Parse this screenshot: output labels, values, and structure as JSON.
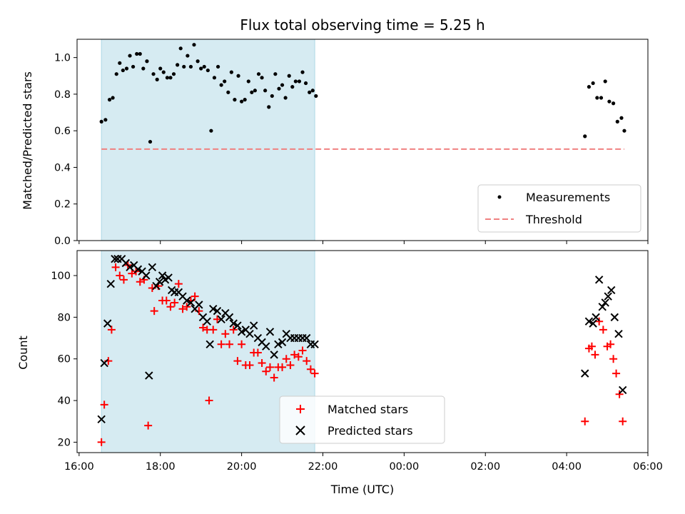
{
  "chart_data": [
    {
      "type": "scatter",
      "title": "Flux total observing time = 5.25 h",
      "xlabel": "",
      "ylabel": "Matched/Predicted stars",
      "ylim": [
        0,
        1.1
      ],
      "yticks": [
        "0.0",
        "0.2",
        "0.4",
        "0.6",
        "0.8",
        "1.0"
      ],
      "ytick_values": [
        0,
        0.2,
        0.4,
        0.6,
        0.8,
        1.0
      ],
      "highlight_span": {
        "x0": 16.55,
        "x1": 21.8,
        "color": "#add8e6"
      },
      "legend": {
        "position": "lower right"
      },
      "series": [
        {
          "name": "Measurements",
          "marker": "dot",
          "color": "#000000",
          "x": [
            16.55,
            16.65,
            16.75,
            16.83,
            16.92,
            17.0,
            17.08,
            17.17,
            17.25,
            17.33,
            17.42,
            17.5,
            17.58,
            17.67,
            17.75,
            17.83,
            17.92,
            18.0,
            18.08,
            18.17,
            18.25,
            18.33,
            18.42,
            18.5,
            18.58,
            18.67,
            18.75,
            18.83,
            18.92,
            19.0,
            19.08,
            19.17,
            19.25,
            19.33,
            19.42,
            19.5,
            19.58,
            19.67,
            19.75,
            19.83,
            19.92,
            20.0,
            20.08,
            20.17,
            20.25,
            20.33,
            20.42,
            20.5,
            20.58,
            20.67,
            20.75,
            20.83,
            20.92,
            21.0,
            21.08,
            21.17,
            21.25,
            21.33,
            21.42,
            21.5,
            21.58,
            21.67,
            21.75,
            21.83,
            4.45,
            4.55,
            4.65,
            4.75,
            4.85,
            4.95,
            5.05,
            5.15,
            5.25,
            5.35,
            5.42
          ],
          "y": [
            0.65,
            0.66,
            0.77,
            0.78,
            0.91,
            0.97,
            0.93,
            0.94,
            1.01,
            0.95,
            1.02,
            1.02,
            0.94,
            0.98,
            0.54,
            0.91,
            0.88,
            0.94,
            0.92,
            0.89,
            0.89,
            0.91,
            0.96,
            1.05,
            0.95,
            1.01,
            0.95,
            1.07,
            0.98,
            0.94,
            0.95,
            0.93,
            0.6,
            0.89,
            0.95,
            0.85,
            0.87,
            0.81,
            0.92,
            0.77,
            0.9,
            0.76,
            0.77,
            0.87,
            0.81,
            0.82,
            0.91,
            0.89,
            0.82,
            0.73,
            0.79,
            0.91,
            0.83,
            0.85,
            0.78,
            0.9,
            0.84,
            0.87,
            0.87,
            0.92,
            0.86,
            0.81,
            0.82,
            0.79,
            0.57,
            0.84,
            0.86,
            0.78,
            0.78,
            0.87,
            0.76,
            0.75,
            0.65,
            0.67,
            0.6
          ]
        },
        {
          "name": "Threshold",
          "marker": "dashed-line",
          "color": "#f08080",
          "x": [
            16.55,
            5.42
          ],
          "y": [
            0.5,
            0.5
          ]
        }
      ]
    },
    {
      "type": "scatter",
      "title": "",
      "xlabel": "Time (UTC)",
      "ylabel": "Count",
      "ylim": [
        15,
        112
      ],
      "yticks": [
        "20",
        "40",
        "60",
        "80",
        "100"
      ],
      "ytick_values": [
        20,
        40,
        60,
        80,
        100
      ],
      "xticks": [
        "16:00",
        "18:00",
        "20:00",
        "22:00",
        "00:00",
        "02:00",
        "04:00",
        "06:00"
      ],
      "xtick_hours": [
        16,
        18,
        20,
        22,
        24,
        26,
        28,
        30
      ],
      "xlim_hours": [
        15.95,
        30.0
      ],
      "highlight_span": {
        "x0": 16.55,
        "x1": 21.8,
        "color": "#add8e6"
      },
      "legend": {
        "position": "lower center"
      },
      "series": [
        {
          "name": "Matched stars",
          "marker": "plus",
          "color": "#ff0000",
          "x": [
            16.55,
            16.62,
            16.72,
            16.8,
            16.9,
            17.0,
            17.1,
            17.2,
            17.3,
            17.4,
            17.5,
            17.6,
            17.7,
            17.8,
            17.85,
            17.95,
            18.05,
            18.15,
            18.25,
            18.35,
            18.45,
            18.55,
            18.65,
            18.75,
            18.85,
            18.95,
            19.05,
            19.15,
            19.2,
            19.3,
            19.4,
            19.5,
            19.6,
            19.7,
            19.8,
            19.9,
            20.0,
            20.1,
            20.2,
            20.3,
            20.4,
            20.5,
            20.6,
            20.7,
            20.8,
            20.9,
            21.0,
            21.1,
            21.2,
            21.3,
            21.4,
            21.5,
            21.6,
            21.7,
            21.8,
            4.45,
            4.55,
            4.62,
            4.7,
            4.8,
            4.9,
            5.0,
            5.08,
            5.15,
            5.22,
            5.3,
            5.38
          ],
          "y": [
            20,
            38,
            59,
            74,
            104,
            100,
            98,
            105,
            101,
            102,
            97,
            98,
            28,
            94,
            83,
            95,
            88,
            88,
            85,
            87,
            96,
            84,
            85,
            88,
            90,
            83,
            75,
            74,
            40,
            74,
            79,
            67,
            72,
            67,
            74,
            59,
            67,
            57,
            57,
            63,
            63,
            58,
            54,
            56,
            51,
            56,
            56,
            60,
            57,
            62,
            61,
            64,
            59,
            55,
            53,
            30,
            65,
            66,
            62,
            78,
            74,
            66,
            67,
            60,
            53,
            43,
            30
          ]
        },
        {
          "name": "Predicted stars",
          "marker": "x",
          "color": "#000000",
          "x": [
            16.55,
            16.62,
            16.7,
            16.78,
            16.88,
            16.95,
            17.05,
            17.15,
            17.25,
            17.35,
            17.45,
            17.55,
            17.65,
            17.72,
            17.8,
            17.9,
            17.98,
            18.05,
            18.12,
            18.2,
            18.28,
            18.35,
            18.45,
            18.55,
            18.65,
            18.75,
            18.85,
            18.95,
            19.05,
            19.15,
            19.22,
            19.3,
            19.4,
            19.5,
            19.6,
            19.7,
            19.8,
            19.9,
            20.0,
            20.1,
            20.2,
            20.3,
            20.4,
            20.5,
            20.6,
            20.7,
            20.8,
            20.9,
            21.0,
            21.1,
            21.2,
            21.3,
            21.4,
            21.5,
            21.6,
            21.7,
            21.8,
            4.45,
            4.55,
            4.65,
            4.72,
            4.8,
            4.88,
            4.95,
            5.02,
            5.1,
            5.18,
            5.28,
            5.38
          ],
          "y": [
            31,
            58,
            77,
            96,
            108,
            108,
            108,
            106,
            104,
            105,
            103,
            102,
            100,
            52,
            104,
            95,
            97,
            100,
            98,
            99,
            93,
            92,
            92,
            90,
            88,
            87,
            84,
            86,
            80,
            78,
            67,
            84,
            83,
            79,
            82,
            80,
            77,
            76,
            73,
            74,
            72,
            76,
            70,
            68,
            66,
            73,
            62,
            67,
            68,
            72,
            70,
            70,
            70,
            70,
            70,
            67,
            67,
            53,
            78,
            77,
            80,
            98,
            85,
            87,
            90,
            93,
            80,
            72,
            45
          ]
        }
      ]
    }
  ]
}
